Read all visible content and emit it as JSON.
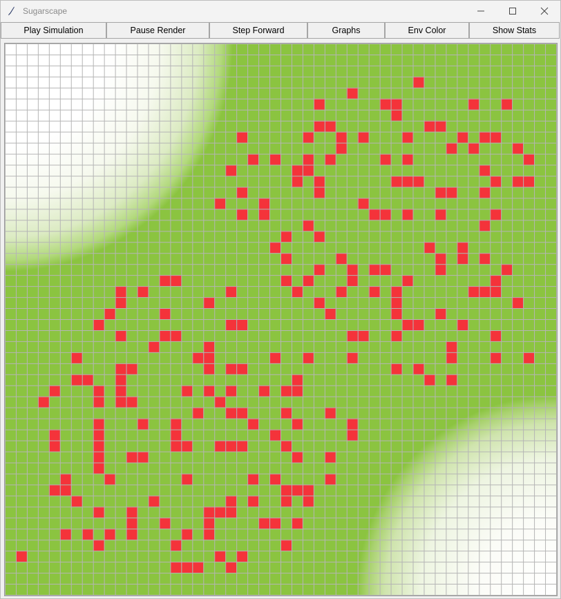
{
  "window": {
    "title": "Sugarscape",
    "controls": [
      "minimize",
      "maximize",
      "close"
    ]
  },
  "toolbar": {
    "buttons": [
      {
        "label": "Play Simulation"
      },
      {
        "label": "Pause Render"
      },
      {
        "label": "Step Forward"
      },
      {
        "label": "Graphs"
      },
      {
        "label": "Env Color"
      },
      {
        "label": "Show Stats"
      }
    ]
  },
  "environment": {
    "grid_size": 50,
    "cell_colors": {
      "sugar": "#8bc440",
      "agent": "#f4333a",
      "grid_line": "#b5b5b5",
      "empty": "#ffffff"
    },
    "agents": [
      [
        37,
        3
      ],
      [
        31,
        4
      ],
      [
        28,
        5
      ],
      [
        34,
        5
      ],
      [
        35,
        5
      ],
      [
        42,
        5
      ],
      [
        45,
        5
      ],
      [
        35,
        6
      ],
      [
        28,
        7
      ],
      [
        29,
        7
      ],
      [
        38,
        7
      ],
      [
        39,
        7
      ],
      [
        21,
        8
      ],
      [
        27,
        8
      ],
      [
        30,
        8
      ],
      [
        32,
        8
      ],
      [
        36,
        8
      ],
      [
        41,
        8
      ],
      [
        43,
        8
      ],
      [
        44,
        8
      ],
      [
        30,
        9
      ],
      [
        40,
        9
      ],
      [
        42,
        9
      ],
      [
        46,
        9
      ],
      [
        22,
        10
      ],
      [
        24,
        10
      ],
      [
        27,
        10
      ],
      [
        29,
        10
      ],
      [
        34,
        10
      ],
      [
        36,
        10
      ],
      [
        47,
        10
      ],
      [
        20,
        11
      ],
      [
        26,
        11
      ],
      [
        27,
        11
      ],
      [
        43,
        11
      ],
      [
        26,
        12
      ],
      [
        28,
        12
      ],
      [
        35,
        12
      ],
      [
        36,
        12
      ],
      [
        37,
        12
      ],
      [
        44,
        12
      ],
      [
        46,
        12
      ],
      [
        47,
        12
      ],
      [
        21,
        13
      ],
      [
        28,
        13
      ],
      [
        39,
        13
      ],
      [
        40,
        13
      ],
      [
        43,
        13
      ],
      [
        19,
        14
      ],
      [
        23,
        14
      ],
      [
        32,
        14
      ],
      [
        21,
        15
      ],
      [
        23,
        15
      ],
      [
        33,
        15
      ],
      [
        34,
        15
      ],
      [
        36,
        15
      ],
      [
        39,
        15
      ],
      [
        44,
        15
      ],
      [
        27,
        16
      ],
      [
        43,
        16
      ],
      [
        25,
        17
      ],
      [
        28,
        17
      ],
      [
        24,
        18
      ],
      [
        38,
        18
      ],
      [
        41,
        18
      ],
      [
        25,
        19
      ],
      [
        30,
        19
      ],
      [
        39,
        19
      ],
      [
        41,
        19
      ],
      [
        43,
        19
      ],
      [
        28,
        20
      ],
      [
        31,
        20
      ],
      [
        33,
        20
      ],
      [
        34,
        20
      ],
      [
        39,
        20
      ],
      [
        45,
        20
      ],
      [
        14,
        21
      ],
      [
        15,
        21
      ],
      [
        25,
        21
      ],
      [
        27,
        21
      ],
      [
        31,
        21
      ],
      [
        36,
        21
      ],
      [
        44,
        21
      ],
      [
        10,
        22
      ],
      [
        12,
        22
      ],
      [
        20,
        22
      ],
      [
        26,
        22
      ],
      [
        30,
        22
      ],
      [
        33,
        22
      ],
      [
        35,
        22
      ],
      [
        42,
        22
      ],
      [
        43,
        22
      ],
      [
        44,
        22
      ],
      [
        10,
        23
      ],
      [
        18,
        23
      ],
      [
        28,
        23
      ],
      [
        35,
        23
      ],
      [
        46,
        23
      ],
      [
        9,
        24
      ],
      [
        14,
        24
      ],
      [
        29,
        24
      ],
      [
        35,
        24
      ],
      [
        39,
        24
      ],
      [
        8,
        25
      ],
      [
        20,
        25
      ],
      [
        21,
        25
      ],
      [
        36,
        25
      ],
      [
        37,
        25
      ],
      [
        41,
        25
      ],
      [
        10,
        26
      ],
      [
        14,
        26
      ],
      [
        15,
        26
      ],
      [
        31,
        26
      ],
      [
        32,
        26
      ],
      [
        35,
        26
      ],
      [
        44,
        26
      ],
      [
        13,
        27
      ],
      [
        18,
        27
      ],
      [
        40,
        27
      ],
      [
        6,
        28
      ],
      [
        17,
        28
      ],
      [
        18,
        28
      ],
      [
        24,
        28
      ],
      [
        27,
        28
      ],
      [
        31,
        28
      ],
      [
        40,
        28
      ],
      [
        44,
        28
      ],
      [
        47,
        28
      ],
      [
        10,
        29
      ],
      [
        11,
        29
      ],
      [
        18,
        29
      ],
      [
        20,
        29
      ],
      [
        21,
        29
      ],
      [
        35,
        29
      ],
      [
        37,
        29
      ],
      [
        6,
        30
      ],
      [
        7,
        30
      ],
      [
        10,
        30
      ],
      [
        26,
        30
      ],
      [
        38,
        30
      ],
      [
        40,
        30
      ],
      [
        4,
        31
      ],
      [
        8,
        31
      ],
      [
        10,
        31
      ],
      [
        16,
        31
      ],
      [
        18,
        31
      ],
      [
        20,
        31
      ],
      [
        23,
        31
      ],
      [
        25,
        31
      ],
      [
        26,
        31
      ],
      [
        3,
        32
      ],
      [
        8,
        32
      ],
      [
        10,
        32
      ],
      [
        11,
        32
      ],
      [
        19,
        32
      ],
      [
        17,
        33
      ],
      [
        20,
        33
      ],
      [
        21,
        33
      ],
      [
        25,
        33
      ],
      [
        29,
        33
      ],
      [
        8,
        34
      ],
      [
        12,
        34
      ],
      [
        15,
        34
      ],
      [
        22,
        34
      ],
      [
        26,
        34
      ],
      [
        31,
        34
      ],
      [
        4,
        35
      ],
      [
        8,
        35
      ],
      [
        15,
        35
      ],
      [
        24,
        35
      ],
      [
        31,
        35
      ],
      [
        4,
        36
      ],
      [
        8,
        36
      ],
      [
        15,
        36
      ],
      [
        16,
        36
      ],
      [
        19,
        36
      ],
      [
        20,
        36
      ],
      [
        21,
        36
      ],
      [
        25,
        36
      ],
      [
        8,
        37
      ],
      [
        11,
        37
      ],
      [
        12,
        37
      ],
      [
        26,
        37
      ],
      [
        29,
        37
      ],
      [
        8,
        38
      ],
      [
        5,
        39
      ],
      [
        9,
        39
      ],
      [
        16,
        39
      ],
      [
        22,
        39
      ],
      [
        24,
        39
      ],
      [
        29,
        39
      ],
      [
        4,
        40
      ],
      [
        5,
        40
      ],
      [
        25,
        40
      ],
      [
        26,
        40
      ],
      [
        27,
        40
      ],
      [
        6,
        41
      ],
      [
        13,
        41
      ],
      [
        20,
        41
      ],
      [
        22,
        41
      ],
      [
        25,
        41
      ],
      [
        27,
        41
      ],
      [
        8,
        42
      ],
      [
        11,
        42
      ],
      [
        18,
        42
      ],
      [
        19,
        42
      ],
      [
        20,
        42
      ],
      [
        11,
        43
      ],
      [
        14,
        43
      ],
      [
        18,
        43
      ],
      [
        23,
        43
      ],
      [
        24,
        43
      ],
      [
        26,
        43
      ],
      [
        5,
        44
      ],
      [
        7,
        44
      ],
      [
        9,
        44
      ],
      [
        11,
        44
      ],
      [
        16,
        44
      ],
      [
        18,
        44
      ],
      [
        8,
        45
      ],
      [
        15,
        45
      ],
      [
        25,
        45
      ],
      [
        1,
        46
      ],
      [
        19,
        46
      ],
      [
        21,
        46
      ],
      [
        15,
        47
      ],
      [
        16,
        47
      ],
      [
        17,
        47
      ],
      [
        20,
        47
      ]
    ]
  }
}
